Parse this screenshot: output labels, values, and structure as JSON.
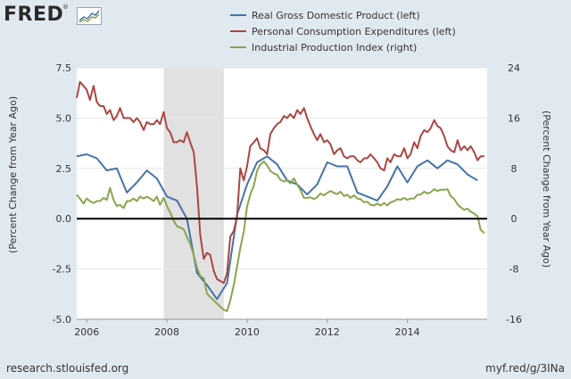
{
  "header": {
    "logo_text": "FRED",
    "logo_mark": "®"
  },
  "footer": {
    "source": "research.stlouisfed.org",
    "short_link": "myf.red/g/3INa"
  },
  "chart_data": {
    "type": "line",
    "title": "",
    "xlabel": "",
    "ylabel_left": "(Percent Change from Year Ago)",
    "ylabel_right": "(Percent Change from Year Ago)",
    "xlim": [
      2005.75,
      2015.99
    ],
    "ylim_left": [
      -5.0,
      7.5
    ],
    "ylim_right": [
      -16,
      24
    ],
    "yticks_left": [
      "7.5",
      "5.0",
      "2.5",
      "0.0",
      "-2.5",
      "-5.0"
    ],
    "yticks_left_values": [
      7.5,
      5.0,
      2.5,
      0.0,
      -2.5,
      -5.0
    ],
    "yticks_right": [
      "24",
      "16",
      "8",
      "0",
      "-8",
      "-16"
    ],
    "yticks_right_values": [
      24,
      16,
      8,
      0,
      -8,
      -16
    ],
    "xticks": [
      "2006",
      "2008",
      "2010",
      "2012",
      "2014"
    ],
    "xticks_values": [
      2006,
      2008,
      2010,
      2012,
      2014
    ],
    "recession": [
      2007.92,
      2009.42
    ],
    "grid": "horizontal",
    "legend_position": "top",
    "series": [
      {
        "name": "Real Gross Domestic Product (left)",
        "axis": "left",
        "color": "#4572a7",
        "x": [
          2005.75,
          2006.0,
          2006.25,
          2006.5,
          2006.75,
          2007.0,
          2007.25,
          2007.5,
          2007.75,
          2008.0,
          2008.25,
          2008.5,
          2008.75,
          2009.0,
          2009.25,
          2009.5,
          2009.75,
          2010.0,
          2010.25,
          2010.5,
          2010.75,
          2011.0,
          2011.25,
          2011.5,
          2011.75,
          2012.0,
          2012.25,
          2012.5,
          2012.75,
          2013.0,
          2013.25,
          2013.5,
          2013.75,
          2014.0,
          2014.25,
          2014.5,
          2014.75,
          2015.0,
          2015.25,
          2015.5,
          2015.75
        ],
        "values": [
          3.1,
          3.2,
          3.0,
          2.4,
          2.5,
          1.3,
          1.8,
          2.4,
          2.0,
          1.1,
          0.9,
          0.0,
          -2.7,
          -3.3,
          -4.0,
          -3.2,
          0.2,
          1.7,
          2.8,
          3.1,
          2.7,
          1.9,
          1.7,
          1.2,
          1.7,
          2.8,
          2.6,
          2.6,
          1.3,
          1.1,
          0.9,
          1.6,
          2.6,
          1.8,
          2.6,
          2.9,
          2.5,
          2.9,
          2.7,
          2.2,
          1.9
        ]
      },
      {
        "name": "Personal Consumption Expenditures (left)",
        "axis": "left",
        "color": "#aa4643",
        "x": [
          2005.75,
          2005.83,
          2005.92,
          2006.0,
          2006.08,
          2006.17,
          2006.25,
          2006.33,
          2006.42,
          2006.5,
          2006.58,
          2006.67,
          2006.75,
          2006.83,
          2006.92,
          2007.0,
          2007.08,
          2007.17,
          2007.25,
          2007.33,
          2007.42,
          2007.5,
          2007.58,
          2007.67,
          2007.75,
          2007.83,
          2007.92,
          2008.0,
          2008.08,
          2008.17,
          2008.25,
          2008.33,
          2008.42,
          2008.5,
          2008.58,
          2008.67,
          2008.75,
          2008.83,
          2008.92,
          2009.0,
          2009.08,
          2009.17,
          2009.25,
          2009.33,
          2009.42,
          2009.5,
          2009.58,
          2009.67,
          2009.75,
          2009.83,
          2009.92,
          2010.0,
          2010.08,
          2010.17,
          2010.25,
          2010.33,
          2010.42,
          2010.5,
          2010.58,
          2010.67,
          2010.75,
          2010.83,
          2010.92,
          2011.0,
          2011.08,
          2011.17,
          2011.25,
          2011.33,
          2011.42,
          2011.5,
          2011.58,
          2011.67,
          2011.75,
          2011.83,
          2011.92,
          2012.0,
          2012.08,
          2012.17,
          2012.25,
          2012.33,
          2012.42,
          2012.5,
          2012.58,
          2012.67,
          2012.75,
          2012.83,
          2012.92,
          2013.0,
          2013.08,
          2013.17,
          2013.25,
          2013.33,
          2013.42,
          2013.5,
          2013.58,
          2013.67,
          2013.75,
          2013.83,
          2013.92,
          2014.0,
          2014.08,
          2014.17,
          2014.25,
          2014.33,
          2014.42,
          2014.5,
          2014.58,
          2014.67,
          2014.75,
          2014.83,
          2014.92,
          2015.0,
          2015.08,
          2015.17,
          2015.25,
          2015.33,
          2015.42,
          2015.5,
          2015.58,
          2015.67,
          2015.75,
          2015.83,
          2015.92
        ],
        "values": [
          6.0,
          6.8,
          6.6,
          6.4,
          5.9,
          6.6,
          5.8,
          5.6,
          5.6,
          5.2,
          5.4,
          4.9,
          5.1,
          5.5,
          5.0,
          5.0,
          5.0,
          4.8,
          5.0,
          4.8,
          4.4,
          4.8,
          4.7,
          4.7,
          4.9,
          4.7,
          5.3,
          4.5,
          4.3,
          3.8,
          3.8,
          3.9,
          3.8,
          4.3,
          3.8,
          3.3,
          1.6,
          -0.8,
          -2.0,
          -1.7,
          -1.8,
          -2.6,
          -3.0,
          -3.1,
          -3.2,
          -2.7,
          -0.9,
          -0.6,
          0.1,
          2.5,
          1.9,
          2.6,
          3.6,
          3.8,
          4.0,
          3.5,
          3.4,
          3.2,
          4.2,
          4.5,
          4.7,
          4.8,
          5.1,
          5.0,
          5.2,
          5.0,
          5.4,
          5.2,
          5.5,
          5.0,
          4.6,
          4.2,
          3.9,
          4.2,
          3.8,
          3.9,
          3.7,
          3.2,
          3.4,
          3.5,
          3.1,
          3.0,
          3.1,
          3.1,
          2.9,
          2.8,
          3.0,
          3.0,
          3.2,
          3.0,
          2.8,
          2.5,
          2.4,
          3.0,
          2.8,
          3.2,
          3.1,
          3.1,
          3.5,
          3.0,
          3.2,
          3.8,
          3.5,
          4.1,
          4.4,
          4.3,
          4.5,
          4.9,
          4.6,
          4.5,
          4.1,
          3.6,
          3.4,
          3.3,
          3.9,
          3.4,
          3.6,
          3.4,
          3.6,
          3.3,
          2.9,
          3.1,
          3.1
        ]
      },
      {
        "name": "Industrial Production Index (right)",
        "axis": "right",
        "color": "#89a54e",
        "x": [
          2005.75,
          2005.83,
          2005.92,
          2006.0,
          2006.08,
          2006.17,
          2006.25,
          2006.33,
          2006.42,
          2006.5,
          2006.58,
          2006.67,
          2006.75,
          2006.83,
          2006.92,
          2007.0,
          2007.08,
          2007.17,
          2007.25,
          2007.33,
          2007.42,
          2007.5,
          2007.58,
          2007.67,
          2007.75,
          2007.83,
          2007.92,
          2008.0,
          2008.08,
          2008.17,
          2008.25,
          2008.33,
          2008.42,
          2008.5,
          2008.58,
          2008.67,
          2008.75,
          2008.83,
          2008.92,
          2009.0,
          2009.08,
          2009.17,
          2009.25,
          2009.33,
          2009.42,
          2009.5,
          2009.58,
          2009.67,
          2009.75,
          2009.83,
          2009.92,
          2010.0,
          2010.08,
          2010.17,
          2010.25,
          2010.33,
          2010.42,
          2010.5,
          2010.58,
          2010.67,
          2010.75,
          2010.83,
          2010.92,
          2011.0,
          2011.08,
          2011.17,
          2011.25,
          2011.33,
          2011.42,
          2011.5,
          2011.58,
          2011.67,
          2011.75,
          2011.83,
          2011.92,
          2012.0,
          2012.08,
          2012.17,
          2012.25,
          2012.33,
          2012.42,
          2012.5,
          2012.58,
          2012.67,
          2012.75,
          2012.83,
          2012.92,
          2013.0,
          2013.08,
          2013.17,
          2013.25,
          2013.33,
          2013.42,
          2013.5,
          2013.58,
          2013.67,
          2013.75,
          2013.83,
          2013.92,
          2014.0,
          2014.08,
          2014.17,
          2014.25,
          2014.33,
          2014.42,
          2014.5,
          2014.58,
          2014.67,
          2014.75,
          2014.83,
          2014.92,
          2015.0,
          2015.08,
          2015.17,
          2015.25,
          2015.33,
          2015.42,
          2015.5,
          2015.58,
          2015.67,
          2015.75,
          2015.83,
          2015.92
        ],
        "values": [
          3.8,
          3.2,
          2.4,
          3.2,
          2.8,
          2.5,
          2.8,
          2.8,
          3.3,
          3.0,
          4.9,
          3.0,
          2.0,
          2.2,
          1.7,
          2.8,
          2.8,
          3.2,
          2.8,
          3.5,
          3.2,
          3.5,
          3.2,
          2.8,
          3.5,
          2.2,
          3.3,
          2.0,
          1.0,
          -0.3,
          -1.2,
          -1.4,
          -1.7,
          -2.9,
          -4.0,
          -5.8,
          -7.8,
          -9.1,
          -9.5,
          -11.9,
          -12.5,
          -13.0,
          -13.5,
          -14.0,
          -14.5,
          -14.7,
          -13.0,
          -10.5,
          -7.6,
          -4.7,
          -2.0,
          1.9,
          3.8,
          5.3,
          7.6,
          8.6,
          9.1,
          8.5,
          7.6,
          7.2,
          7.0,
          6.2,
          5.9,
          6.1,
          5.6,
          6.4,
          5.4,
          4.6,
          3.3,
          3.3,
          3.4,
          3.1,
          3.4,
          4.0,
          3.7,
          4.1,
          4.4,
          4.1,
          3.9,
          4.3,
          3.6,
          3.8,
          3.3,
          3.7,
          3.2,
          3.1,
          2.6,
          2.7,
          2.2,
          2.1,
          2.4,
          2.1,
          2.5,
          2.1,
          2.6,
          2.8,
          3.1,
          3.0,
          3.3,
          3.0,
          3.2,
          3.2,
          3.8,
          3.8,
          4.3,
          4.0,
          4.2,
          4.7,
          4.4,
          4.6,
          4.6,
          4.7,
          3.6,
          3.1,
          2.3,
          1.8,
          1.4,
          1.6,
          1.1,
          0.8,
          0.4,
          -1.8,
          -2.3
        ]
      }
    ]
  }
}
